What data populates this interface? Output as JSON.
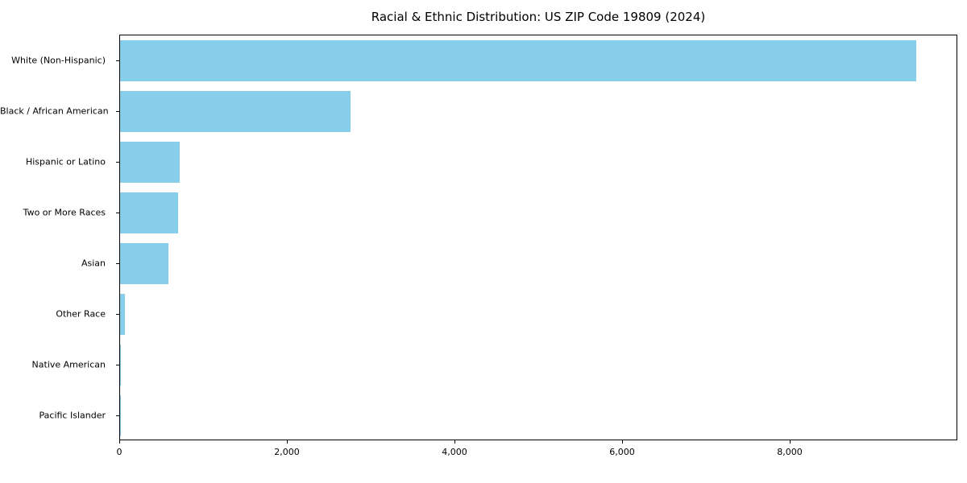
{
  "chart_data": {
    "type": "bar",
    "orientation": "horizontal",
    "title": "Racial & Ethnic Distribution: US ZIP Code 19809 (2024)",
    "categories": [
      "White (Non-Hispanic)",
      "Black / African American",
      "Hispanic or Latino",
      "Two or More Races",
      "Asian",
      "Other Race",
      "Native American",
      "Pacific Islander"
    ],
    "values": [
      9500,
      2750,
      710,
      690,
      580,
      55,
      10,
      5
    ],
    "xlabel": "",
    "ylabel": "",
    "xlim": [
      0,
      10000
    ],
    "xticks": [
      0,
      2000,
      4000,
      6000,
      8000
    ],
    "xtick_labels": [
      "0",
      "2,000",
      "4,000",
      "6,000",
      "8,000"
    ],
    "bar_color": "#87CEEB",
    "grid": false,
    "legend_position": "none"
  }
}
